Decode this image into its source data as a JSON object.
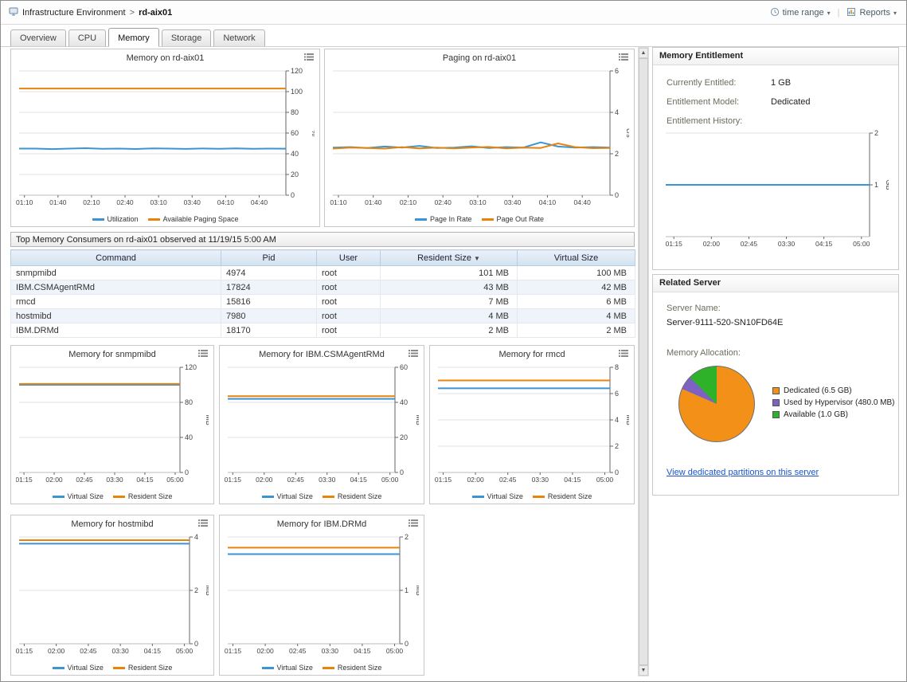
{
  "breadcrumb": {
    "root": "Infrastructure Environment",
    "separator": ">",
    "current": "rd-aix01"
  },
  "topbar": {
    "time_range_label": "time range",
    "reports_label": "Reports",
    "caret": "▾",
    "separator": "|"
  },
  "tabs": [
    {
      "label": "Overview",
      "active": false
    },
    {
      "label": "CPU",
      "active": false
    },
    {
      "label": "Memory",
      "active": true
    },
    {
      "label": "Storage",
      "active": false
    },
    {
      "label": "Network",
      "active": false
    }
  ],
  "charts": {
    "memory": {
      "type": "line",
      "title": "Memory on rd-aix01",
      "ylabel": "%",
      "ylim": [
        0,
        120
      ],
      "yticks": [
        0,
        20,
        40,
        60,
        80,
        100,
        120
      ],
      "xticks": [
        "01:10",
        "01:40",
        "02:10",
        "02:40",
        "03:10",
        "03:40",
        "04:10",
        "04:40"
      ],
      "xstart": 0.02,
      "xend": 0.9,
      "series": [
        {
          "name": "Utilization",
          "color": "#3b95d2",
          "values": [
            45,
            45,
            44.5,
            45,
            45.4,
            44.8,
            45,
            44.6,
            45.2,
            45,
            44.7,
            45.1,
            44.8,
            45.2,
            44.8,
            45,
            44.9
          ]
        },
        {
          "name": "Available Paging Space",
          "color": "#e8830c",
          "values": [
            103,
            103,
            103,
            103,
            103,
            103,
            103,
            103,
            103,
            103,
            103,
            103,
            103,
            103,
            103,
            103,
            103
          ]
        }
      ]
    },
    "paging": {
      "type": "line",
      "title": "Paging on rd-aix01",
      "ylabel": "c/s",
      "ylim": [
        0,
        6
      ],
      "yticks": [
        0,
        2,
        4,
        6
      ],
      "xticks": [
        "01:10",
        "01:40",
        "02:10",
        "02:40",
        "03:10",
        "03:40",
        "04:10",
        "04:40"
      ],
      "xstart": 0.02,
      "xend": 0.9,
      "series": [
        {
          "name": "Page In Rate",
          "color": "#3b95d2",
          "values": [
            2.3,
            2.32,
            2.28,
            2.35,
            2.3,
            2.38,
            2.28,
            2.3,
            2.36,
            2.28,
            2.32,
            2.3,
            2.55,
            2.35,
            2.3,
            2.32,
            2.3
          ]
        },
        {
          "name": "Page Out Rate",
          "color": "#e8830c",
          "values": [
            2.25,
            2.3,
            2.28,
            2.25,
            2.32,
            2.26,
            2.3,
            2.26,
            2.3,
            2.33,
            2.26,
            2.3,
            2.28,
            2.5,
            2.32,
            2.27,
            2.28
          ]
        }
      ]
    },
    "snmpmibd": {
      "type": "line",
      "title": "Memory for snmpmibd",
      "ylabel": "MB",
      "ylim": [
        0,
        120
      ],
      "yticks": [
        0,
        40,
        80,
        120
      ],
      "xticks": [
        "01:15",
        "02:00",
        "02:45",
        "03:30",
        "04:15",
        "05:00"
      ],
      "xstart": 0.03,
      "xend": 0.97,
      "series": [
        {
          "name": "Virtual Size",
          "color": "#3b95d2",
          "values": [
            100,
            100,
            100,
            100,
            100,
            100,
            100,
            100
          ]
        },
        {
          "name": "Resident Size",
          "color": "#e8830c",
          "values": [
            101,
            101,
            101,
            101,
            101,
            101,
            101,
            101
          ]
        }
      ]
    },
    "csmagent": {
      "type": "line",
      "title": "Memory for IBM.CSMAgentRMd",
      "ylabel": "MB",
      "ylim": [
        0,
        60
      ],
      "yticks": [
        0,
        20,
        40,
        60
      ],
      "xticks": [
        "01:15",
        "02:00",
        "02:45",
        "03:30",
        "04:15",
        "05:00"
      ],
      "xstart": 0.03,
      "xend": 0.97,
      "series": [
        {
          "name": "Virtual Size",
          "color": "#3b95d2",
          "values": [
            42,
            42,
            42,
            42,
            42,
            42,
            42,
            42
          ]
        },
        {
          "name": "Resident Size",
          "color": "#e8830c",
          "values": [
            43.5,
            43.5,
            43.5,
            43.5,
            43.5,
            43.5,
            43.5,
            43.5
          ]
        }
      ]
    },
    "rmcd": {
      "type": "line",
      "title": "Memory for rmcd",
      "ylabel": "MB",
      "ylim": [
        0,
        8
      ],
      "yticks": [
        0,
        2,
        4,
        6,
        8
      ],
      "xticks": [
        "01:15",
        "02:00",
        "02:45",
        "03:30",
        "04:15",
        "05:00"
      ],
      "xstart": 0.03,
      "xend": 0.97,
      "series": [
        {
          "name": "Virtual Size",
          "color": "#3b95d2",
          "values": [
            6.4,
            6.4,
            6.4,
            6.4,
            6.4,
            6.4,
            6.4,
            6.4
          ]
        },
        {
          "name": "Resident Size",
          "color": "#e8830c",
          "values": [
            7,
            7,
            7,
            7,
            7,
            7,
            7,
            7
          ]
        }
      ]
    },
    "hostmibd": {
      "type": "line",
      "title": "Memory for hostmibd",
      "ylabel": "MB",
      "ylim": [
        0,
        4
      ],
      "yticks": [
        0,
        2,
        4
      ],
      "xticks": [
        "01:15",
        "02:00",
        "02:45",
        "03:30",
        "04:15",
        "05:00"
      ],
      "xstart": 0.03,
      "xend": 0.97,
      "series": [
        {
          "name": "Virtual Size",
          "color": "#3b95d2",
          "values": [
            3.75,
            3.75,
            3.75,
            3.75,
            3.75,
            3.75,
            3.75,
            3.75
          ]
        },
        {
          "name": "Resident Size",
          "color": "#e8830c",
          "values": [
            3.88,
            3.88,
            3.88,
            3.88,
            3.88,
            3.88,
            3.88,
            3.88
          ]
        }
      ]
    },
    "drmd": {
      "type": "line",
      "title": "Memory for IBM.DRMd",
      "ylabel": "MB",
      "ylim": [
        0,
        2
      ],
      "yticks": [
        0,
        1,
        2
      ],
      "xticks": [
        "01:15",
        "02:00",
        "02:45",
        "03:30",
        "04:15",
        "05:00"
      ],
      "xstart": 0.03,
      "xend": 0.97,
      "series": [
        {
          "name": "Virtual Size",
          "color": "#3b95d2",
          "values": [
            1.68,
            1.68,
            1.68,
            1.68,
            1.68,
            1.68,
            1.68,
            1.68
          ]
        },
        {
          "name": "Resident Size",
          "color": "#e8830c",
          "values": [
            1.8,
            1.8,
            1.8,
            1.8,
            1.8,
            1.8,
            1.8,
            1.8
          ]
        }
      ]
    },
    "entitlement_history": {
      "type": "line",
      "ylabel": "GB",
      "ylim": [
        0,
        2
      ],
      "yticks": [
        1,
        2
      ],
      "xticks": [
        "01:15",
        "02:00",
        "02:45",
        "03:30",
        "04:15",
        "05:00"
      ],
      "xstart": 0.04,
      "xend": 0.96,
      "series": [
        {
          "color": "#3b95d2",
          "values": [
            1,
            1,
            1,
            1,
            1,
            1,
            1,
            1
          ]
        }
      ]
    }
  },
  "consumers_table": {
    "title": "Top Memory Consumers on rd-aix01 observed at 11/19/15 5:00 AM",
    "columns": [
      "Command",
      "Pid",
      "User",
      "Resident Size",
      "Virtual Size"
    ],
    "sort_column": "Resident Size",
    "sort_indicator": "▼",
    "rows": [
      {
        "command": "snmpmibd",
        "pid": "4974",
        "user": "root",
        "resident": "101 MB",
        "virtual": "100 MB"
      },
      {
        "command": "IBM.CSMAgentRMd",
        "pid": "17824",
        "user": "root",
        "resident": "43 MB",
        "virtual": "42 MB"
      },
      {
        "command": "rmcd",
        "pid": "15816",
        "user": "root",
        "resident": "7 MB",
        "virtual": "6 MB"
      },
      {
        "command": "hostmibd",
        "pid": "7980",
        "user": "root",
        "resident": "4 MB",
        "virtual": "4 MB"
      },
      {
        "command": "IBM.DRMd",
        "pid": "18170",
        "user": "root",
        "resident": "2 MB",
        "virtual": "2 MB"
      }
    ]
  },
  "memory_entitlement": {
    "title": "Memory Entitlement",
    "currently_entitled_label": "Currently Entitled:",
    "currently_entitled_value": "1 GB",
    "entitlement_model_label": "Entitlement Model:",
    "entitlement_model_value": "Dedicated",
    "entitlement_history_label": "Entitlement History:"
  },
  "related_server": {
    "title": "Related Server",
    "server_name_label": "Server Name:",
    "server_name_value": "Server-9111-520-SN10FD64E",
    "memory_allocation_label": "Memory Allocation:",
    "pie": {
      "slices": [
        {
          "label": "Dedicated (6.5 GB)",
          "value": 6.5,
          "color": "#f29018"
        },
        {
          "label": "Used by Hypervisor (480.0 MB)",
          "value": 0.469,
          "color": "#7d62c3"
        },
        {
          "label": "Available (1.0 GB)",
          "value": 1.0,
          "color": "#2eb229"
        }
      ]
    },
    "link_label": "View dedicated partitions on this server"
  }
}
